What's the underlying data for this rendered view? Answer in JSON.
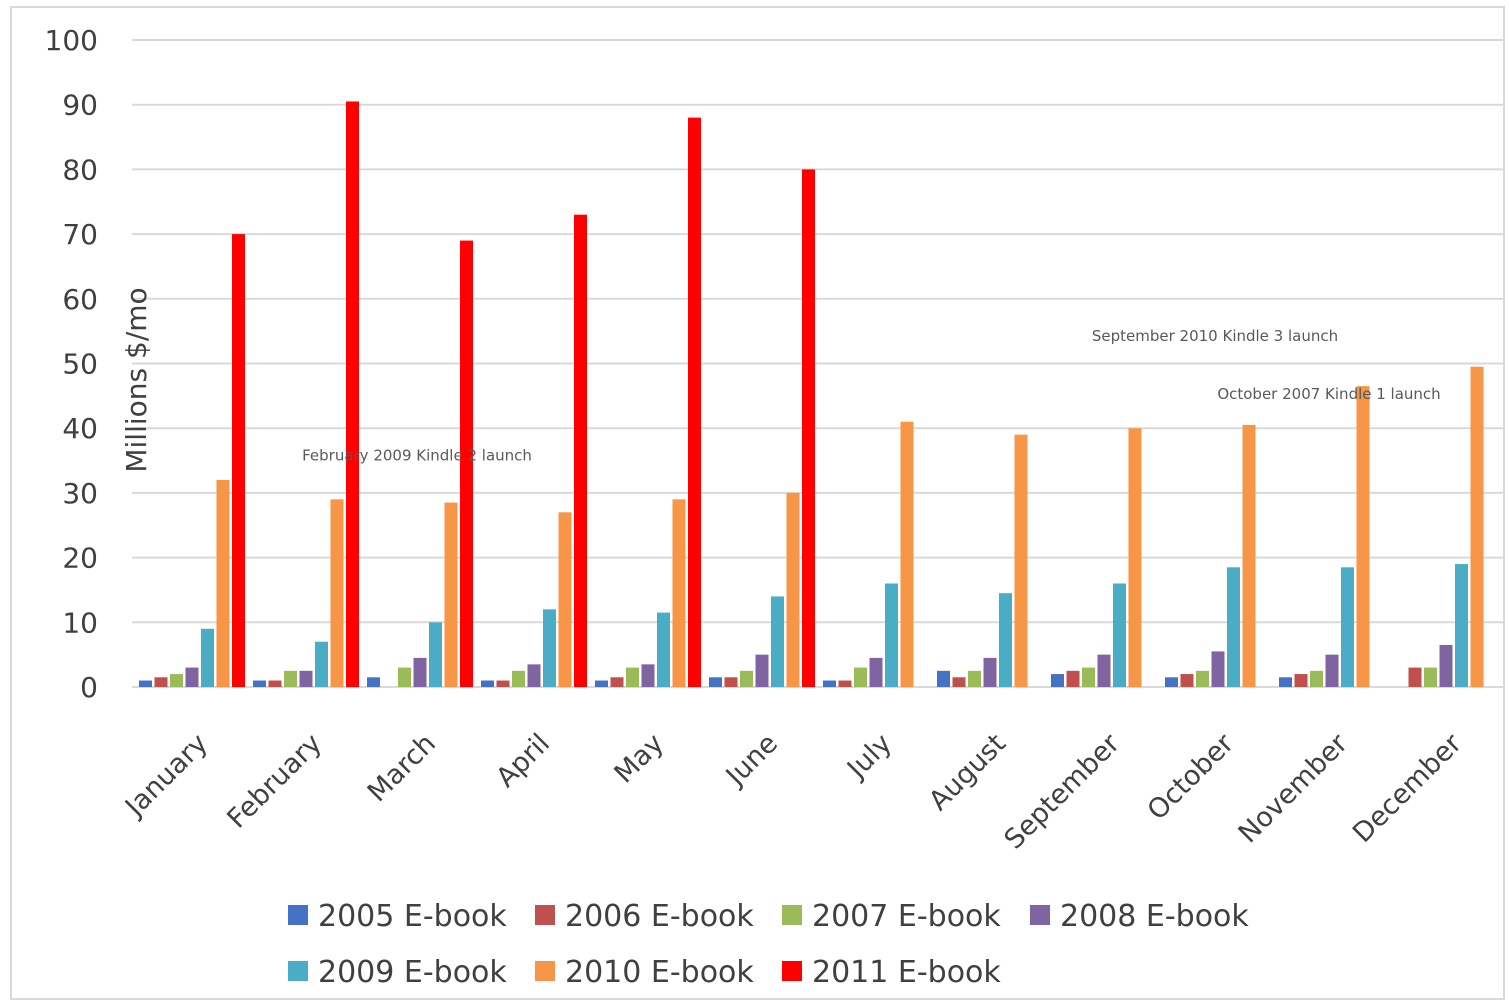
{
  "chart_data": {
    "type": "bar",
    "title": "",
    "xlabel": "",
    "ylabel": "Millions $/mo",
    "ylim": [
      0,
      100
    ],
    "yticks": [
      0,
      10,
      20,
      30,
      40,
      50,
      60,
      70,
      80,
      90,
      100
    ],
    "grid": true,
    "legend_position": "bottom",
    "categories": [
      "January",
      "February",
      "March",
      "April",
      "May",
      "June",
      "July",
      "August",
      "September",
      "October",
      "November",
      "December"
    ],
    "series": [
      {
        "name": "2005 E-book",
        "color": "#4472c4",
        "values": [
          1,
          1,
          1.5,
          1,
          1,
          1.5,
          1,
          2.5,
          2,
          1.5,
          1.5,
          0
        ]
      },
      {
        "name": "2006 E-book",
        "color": "#c0504d",
        "values": [
          1.5,
          1,
          0,
          1,
          1.5,
          1.5,
          1,
          1.5,
          2.5,
          2,
          2,
          3
        ]
      },
      {
        "name": "2007 E-book",
        "color": "#9bbb59",
        "values": [
          2,
          2.5,
          3,
          2.5,
          3,
          2.5,
          3,
          2.5,
          3,
          2.5,
          2.5,
          3
        ]
      },
      {
        "name": "2008 E-book",
        "color": "#8064a2",
        "values": [
          3,
          2.5,
          4.5,
          3.5,
          3.5,
          5,
          4.5,
          4.5,
          5,
          5.5,
          5,
          6.5
        ]
      },
      {
        "name": "2009 E-book",
        "color": "#4bacc6",
        "values": [
          9,
          7,
          10,
          12,
          11.5,
          14,
          16,
          14.5,
          16,
          18.5,
          18.5,
          19
        ]
      },
      {
        "name": "2010 E-book",
        "color": "#f79646",
        "values": [
          32,
          29,
          28.5,
          27,
          29,
          30,
          41,
          39,
          40,
          40.5,
          46.5,
          49.5
        ]
      },
      {
        "name": "2011 E-book",
        "color": "#ff0000",
        "values": [
          70,
          90.5,
          69,
          73,
          88,
          80,
          null,
          null,
          null,
          null,
          null,
          null
        ]
      }
    ],
    "annotations": [
      {
        "text": "February 2009 Kindle 2 launch",
        "x": "March",
        "y": 35
      },
      {
        "text": "September 2010 Kindle 3 launch",
        "x": "October",
        "y": 53.5
      },
      {
        "text": "October 2007 Kindle 1 launch",
        "x": "November",
        "y": 44.5
      }
    ]
  }
}
